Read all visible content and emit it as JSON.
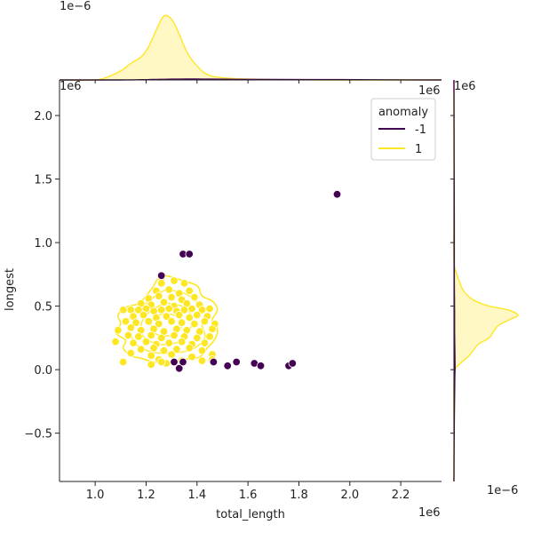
{
  "chart_data": {
    "type": "scatter",
    "subtype": "joint-plot",
    "xlabel": "total_length",
    "ylabel": "longest",
    "x_exponent_label": "1e6",
    "y_exponent_label": "1e6",
    "top_marginal_exponent_label": "1e−6",
    "right_marginal_exponent_label": "1e−6",
    "xlim": [
      0.86,
      2.36
    ],
    "ylim": [
      -0.88,
      2.28
    ],
    "x_ticks": [
      1.0,
      1.2,
      1.4,
      1.6,
      1.8,
      2.0,
      2.2
    ],
    "x_tick_labels": [
      "1.0",
      "1.2",
      "1.4",
      "1.6",
      "1.8",
      "2.0",
      "2.2"
    ],
    "y_ticks": [
      -0.5,
      0.0,
      0.5,
      1.0,
      1.5,
      2.0
    ],
    "y_tick_labels": [
      "−0.5",
      "0.0",
      "0.5",
      "1.0",
      "1.5",
      "2.0"
    ],
    "grid": false,
    "legend": {
      "title": "anomaly",
      "placement": "top-right",
      "entries": [
        {
          "label": "-1",
          "color": "#440154"
        },
        {
          "label": "1",
          "color": "#fde725"
        }
      ]
    },
    "colors": {
      "anomaly": "#440154",
      "normal": "#fde725",
      "normal_fill": "#fff7c4",
      "normal_edge": "#ffffff"
    },
    "series": [
      {
        "group": "-1",
        "points": [
          [
            1.26,
            0.74
          ],
          [
            1.345,
            0.91
          ],
          [
            1.37,
            0.91
          ],
          [
            1.95,
            1.38
          ],
          [
            1.31,
            0.06
          ],
          [
            1.33,
            0.01
          ],
          [
            1.345,
            0.06
          ],
          [
            1.465,
            0.06
          ],
          [
            1.52,
            0.03
          ],
          [
            1.555,
            0.06
          ],
          [
            1.625,
            0.05
          ],
          [
            1.65,
            0.03
          ],
          [
            1.76,
            0.03
          ],
          [
            1.775,
            0.05
          ]
        ]
      },
      {
        "group": "1",
        "points": [
          [
            1.26,
            0.72
          ],
          [
            1.26,
            0.68
          ],
          [
            1.31,
            0.7
          ],
          [
            1.35,
            0.68
          ],
          [
            1.24,
            0.62
          ],
          [
            1.29,
            0.63
          ],
          [
            1.33,
            0.6
          ],
          [
            1.37,
            0.62
          ],
          [
            1.21,
            0.56
          ],
          [
            1.25,
            0.58
          ],
          [
            1.3,
            0.57
          ],
          [
            1.34,
            0.55
          ],
          [
            1.39,
            0.57
          ],
          [
            1.18,
            0.52
          ],
          [
            1.22,
            0.51
          ],
          [
            1.27,
            0.53
          ],
          [
            1.31,
            0.5
          ],
          [
            1.36,
            0.52
          ],
          [
            1.41,
            0.51
          ],
          [
            1.11,
            0.47
          ],
          [
            1.14,
            0.47
          ],
          [
            1.17,
            0.47
          ],
          [
            1.2,
            0.48
          ],
          [
            1.23,
            0.46
          ],
          [
            1.26,
            0.47
          ],
          [
            1.29,
            0.48
          ],
          [
            1.32,
            0.46
          ],
          [
            1.35,
            0.47
          ],
          [
            1.38,
            0.48
          ],
          [
            1.42,
            0.47
          ],
          [
            1.45,
            0.48
          ],
          [
            1.15,
            0.42
          ],
          [
            1.19,
            0.43
          ],
          [
            1.24,
            0.41
          ],
          [
            1.28,
            0.42
          ],
          [
            1.33,
            0.43
          ],
          [
            1.37,
            0.41
          ],
          [
            1.4,
            0.43
          ],
          [
            1.44,
            0.42
          ],
          [
            1.12,
            0.38
          ],
          [
            1.16,
            0.37
          ],
          [
            1.21,
            0.38
          ],
          [
            1.25,
            0.36
          ],
          [
            1.3,
            0.38
          ],
          [
            1.34,
            0.37
          ],
          [
            1.39,
            0.36
          ],
          [
            1.43,
            0.38
          ],
          [
            1.47,
            0.36
          ],
          [
            1.09,
            0.31
          ],
          [
            1.14,
            0.33
          ],
          [
            1.18,
            0.31
          ],
          [
            1.23,
            0.32
          ],
          [
            1.27,
            0.3
          ],
          [
            1.32,
            0.32
          ],
          [
            1.36,
            0.31
          ],
          [
            1.41,
            0.3
          ],
          [
            1.46,
            0.32
          ],
          [
            1.13,
            0.27
          ],
          [
            1.17,
            0.26
          ],
          [
            1.22,
            0.27
          ],
          [
            1.26,
            0.25
          ],
          [
            1.31,
            0.27
          ],
          [
            1.35,
            0.26
          ],
          [
            1.4,
            0.25
          ],
          [
            1.45,
            0.26
          ],
          [
            1.08,
            0.22
          ],
          [
            1.15,
            0.21
          ],
          [
            1.2,
            0.22
          ],
          [
            1.24,
            0.2
          ],
          [
            1.29,
            0.21
          ],
          [
            1.34,
            0.22
          ],
          [
            1.38,
            0.2
          ],
          [
            1.43,
            0.21
          ],
          [
            1.18,
            0.16
          ],
          [
            1.23,
            0.17
          ],
          [
            1.27,
            0.15
          ],
          [
            1.32,
            0.16
          ],
          [
            1.37,
            0.17
          ],
          [
            1.42,
            0.15
          ],
          [
            1.14,
            0.13
          ],
          [
            1.22,
            0.11
          ],
          [
            1.3,
            0.12
          ],
          [
            1.38,
            0.1
          ],
          [
            1.46,
            0.12
          ],
          [
            1.25,
            0.08
          ],
          [
            1.28,
            0.05
          ],
          [
            1.34,
            0.07
          ],
          [
            1.42,
            0.07
          ],
          [
            1.46,
            0.08
          ],
          [
            1.11,
            0.06
          ],
          [
            1.22,
            0.04
          ],
          [
            1.26,
            0.06
          ]
        ]
      }
    ],
    "kde_contours": [
      [
        [
          1.26,
          0.74
        ],
        [
          1.33,
          0.71
        ],
        [
          1.4,
          0.66
        ],
        [
          1.42,
          0.58
        ],
        [
          1.46,
          0.54
        ],
        [
          1.48,
          0.47
        ],
        [
          1.46,
          0.39
        ],
        [
          1.48,
          0.32
        ],
        [
          1.47,
          0.24
        ],
        [
          1.44,
          0.17
        ],
        [
          1.41,
          0.1
        ],
        [
          1.35,
          0.08
        ],
        [
          1.29,
          0.05
        ],
        [
          1.23,
          0.06
        ],
        [
          1.18,
          0.09
        ],
        [
          1.14,
          0.11
        ],
        [
          1.11,
          0.17
        ],
        [
          1.12,
          0.23
        ],
        [
          1.08,
          0.29
        ],
        [
          1.1,
          0.36
        ],
        [
          1.09,
          0.43
        ],
        [
          1.12,
          0.49
        ],
        [
          1.17,
          0.52
        ],
        [
          1.2,
          0.58
        ],
        [
          1.23,
          0.66
        ]
      ],
      [
        [
          1.27,
          0.62
        ],
        [
          1.35,
          0.6
        ],
        [
          1.4,
          0.53
        ],
        [
          1.43,
          0.45
        ],
        [
          1.42,
          0.35
        ],
        [
          1.43,
          0.25
        ],
        [
          1.38,
          0.16
        ],
        [
          1.3,
          0.13
        ],
        [
          1.22,
          0.14
        ],
        [
          1.16,
          0.2
        ],
        [
          1.14,
          0.28
        ],
        [
          1.13,
          0.37
        ],
        [
          1.15,
          0.45
        ],
        [
          1.2,
          0.52
        ]
      ],
      [
        [
          1.28,
          0.52
        ],
        [
          1.35,
          0.49
        ],
        [
          1.38,
          0.41
        ],
        [
          1.37,
          0.31
        ],
        [
          1.33,
          0.22
        ],
        [
          1.25,
          0.2
        ],
        [
          1.19,
          0.26
        ],
        [
          1.18,
          0.35
        ],
        [
          1.21,
          0.45
        ]
      ],
      [
        [
          1.28,
          0.44
        ],
        [
          1.33,
          0.41
        ],
        [
          1.34,
          0.34
        ],
        [
          1.3,
          0.27
        ],
        [
          1.24,
          0.28
        ],
        [
          1.22,
          0.36
        ],
        [
          1.24,
          0.42
        ]
      ]
    ],
    "top_marginal": {
      "x": [
        0.86,
        1.0,
        1.05,
        1.1,
        1.14,
        1.18,
        1.21,
        1.24,
        1.27,
        1.3,
        1.33,
        1.36,
        1.4,
        1.45,
        1.55,
        1.7,
        1.9,
        2.1,
        2.36
      ],
      "normal_density": [
        0.0,
        0.0,
        0.05,
        0.14,
        0.26,
        0.36,
        0.52,
        0.78,
        1.0,
        0.95,
        0.72,
        0.44,
        0.22,
        0.07,
        0.02,
        0.005,
        0.0,
        0.0,
        0.0
      ],
      "anomaly_density": [
        0.0,
        0.0,
        0.0,
        0.0,
        0.002,
        0.004,
        0.006,
        0.008,
        0.01,
        0.012,
        0.013,
        0.014,
        0.014,
        0.012,
        0.01,
        0.008,
        0.006,
        0.003,
        0.0
      ]
    },
    "right_marginal": {
      "y": [
        -0.88,
        -0.5,
        -0.1,
        0.0,
        0.05,
        0.1,
        0.15,
        0.2,
        0.25,
        0.3,
        0.35,
        0.4,
        0.43,
        0.47,
        0.5,
        0.55,
        0.62,
        0.7,
        0.76,
        0.85,
        1.2,
        1.6,
        2.28
      ],
      "normal_density": [
        0.0,
        0.0,
        0.0,
        0.02,
        0.1,
        0.22,
        0.3,
        0.38,
        0.55,
        0.62,
        0.7,
        0.9,
        1.0,
        0.85,
        0.55,
        0.3,
        0.15,
        0.08,
        0.04,
        0.0,
        0.0,
        0.0,
        0.0
      ],
      "anomaly_density": [
        0.0,
        0.004,
        0.012,
        0.016,
        0.016,
        0.015,
        0.014,
        0.012,
        0.011,
        0.01,
        0.01,
        0.01,
        0.01,
        0.01,
        0.009,
        0.008,
        0.007,
        0.006,
        0.006,
        0.006,
        0.005,
        0.003,
        0.0
      ]
    }
  }
}
